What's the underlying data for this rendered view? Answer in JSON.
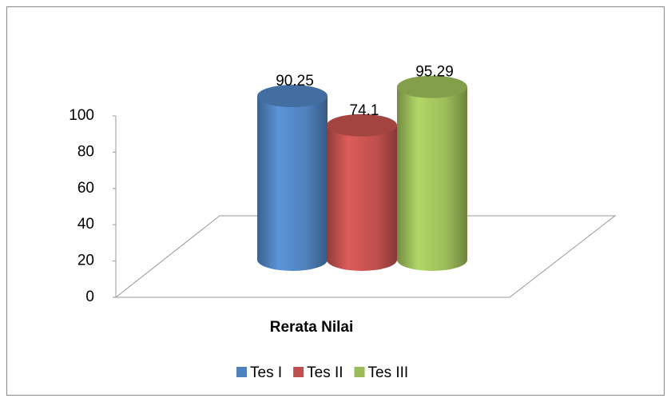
{
  "chart_data": {
    "type": "bar3d",
    "categories": [
      "Rerata Nilai"
    ],
    "series": [
      {
        "name": "Tes I",
        "color": "#4f81bd",
        "values": [
          90.25
        ]
      },
      {
        "name": "Tes II",
        "color": "#c0504d",
        "values": [
          74.1
        ]
      },
      {
        "name": "Tes III",
        "color": "#9bbb59",
        "values": [
          95.29
        ]
      }
    ],
    "ylim": [
      0,
      100
    ],
    "yticks": [
      0,
      20,
      40,
      60,
      80,
      100
    ],
    "legend": "bottom"
  }
}
